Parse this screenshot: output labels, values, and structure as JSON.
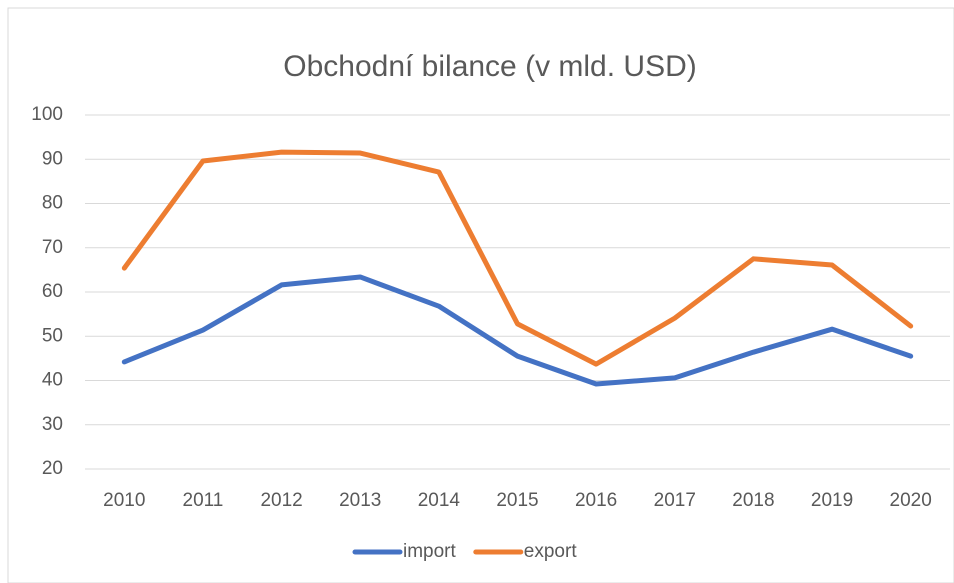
{
  "chart_data": {
    "type": "line",
    "title": "Obchodní bilance (v mld. USD)",
    "categories": [
      "2010",
      "2011",
      "2012",
      "2013",
      "2014",
      "2015",
      "2016",
      "2017",
      "2018",
      "2019",
      "2020"
    ],
    "series": [
      {
        "name": "import",
        "color": "#4472c4",
        "values": [
          44.2,
          51.4,
          61.6,
          63.4,
          56.8,
          45.5,
          39.2,
          40.6,
          46.4,
          51.6,
          45.5
        ]
      },
      {
        "name": "export",
        "color": "#ed7d31",
        "values": [
          65.4,
          89.6,
          91.6,
          91.4,
          87.1,
          52.8,
          43.7,
          54.1,
          67.5,
          66.1,
          52.3
        ]
      }
    ],
    "ylim": [
      20,
      100
    ],
    "yticks": [
      20,
      30,
      40,
      50,
      60,
      70,
      80,
      90,
      100
    ],
    "grid": true,
    "legend": "bottom"
  }
}
